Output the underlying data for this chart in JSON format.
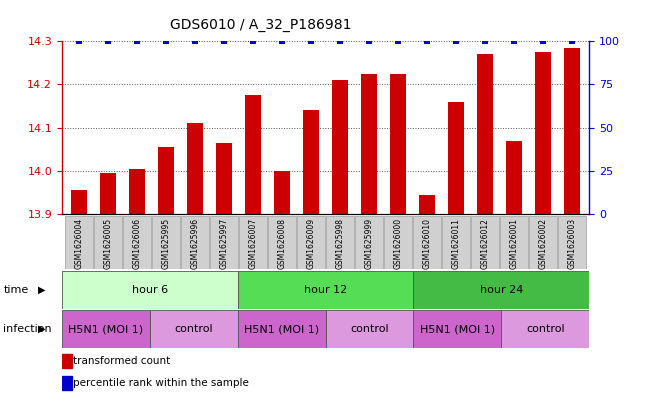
{
  "title": "GDS6010 / A_32_P186981",
  "samples": [
    "GSM1626004",
    "GSM1626005",
    "GSM1626006",
    "GSM1625995",
    "GSM1625996",
    "GSM1625997",
    "GSM1626007",
    "GSM1626008",
    "GSM1626009",
    "GSM1625998",
    "GSM1625999",
    "GSM1626000",
    "GSM1626010",
    "GSM1626011",
    "GSM1626012",
    "GSM1626001",
    "GSM1626002",
    "GSM1626003"
  ],
  "bar_values": [
    13.955,
    13.995,
    14.005,
    14.055,
    14.11,
    14.065,
    14.175,
    14.0,
    14.14,
    14.21,
    14.225,
    14.225,
    13.945,
    14.16,
    14.27,
    14.07,
    14.275,
    14.285
  ],
  "percentile_values": [
    100,
    100,
    100,
    100,
    100,
    100,
    100,
    100,
    100,
    100,
    100,
    100,
    100,
    100,
    100,
    100,
    100,
    100
  ],
  "bar_color": "#cc0000",
  "percentile_color": "#0000cc",
  "ylim_left": [
    13.9,
    14.3
  ],
  "ylim_right": [
    0,
    100
  ],
  "yticks_left": [
    13.9,
    14.0,
    14.1,
    14.2,
    14.3
  ],
  "yticks_right": [
    0,
    25,
    50,
    75,
    100
  ],
  "time_groups": [
    {
      "label": "hour 6",
      "start": 0,
      "end": 6,
      "color": "#ccffcc"
    },
    {
      "label": "hour 12",
      "start": 6,
      "end": 12,
      "color": "#55dd55"
    },
    {
      "label": "hour 24",
      "start": 12,
      "end": 18,
      "color": "#44bb44"
    }
  ],
  "infection_groups": [
    {
      "label": "H5N1 (MOI 1)",
      "start": 0,
      "end": 3,
      "color": "#cc66cc"
    },
    {
      "label": "control",
      "start": 3,
      "end": 6,
      "color": "#dd99dd"
    },
    {
      "label": "H5N1 (MOI 1)",
      "start": 6,
      "end": 9,
      "color": "#cc66cc"
    },
    {
      "label": "control",
      "start": 9,
      "end": 12,
      "color": "#dd99dd"
    },
    {
      "label": "H5N1 (MOI 1)",
      "start": 12,
      "end": 15,
      "color": "#cc66cc"
    },
    {
      "label": "control",
      "start": 15,
      "end": 18,
      "color": "#dd99dd"
    }
  ],
  "bg_color": "#ffffff",
  "grid_color": "#555555",
  "sample_box_color": "#d0d0d0",
  "left_axis_color": "#cc0000",
  "right_axis_color": "#0000cc",
  "title_fontsize": 10,
  "tick_fontsize": 8,
  "sample_fontsize": 5.5,
  "row_label_fontsize": 8,
  "group_label_fontsize": 8,
  "legend_fontsize": 7.5
}
